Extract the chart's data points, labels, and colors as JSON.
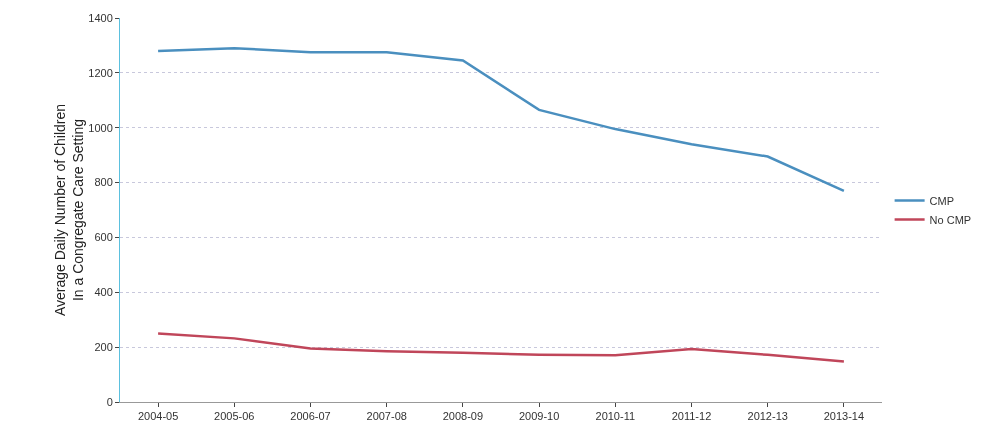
{
  "chart_data": {
    "type": "line",
    "ylabel": "Average Daily Number of Children\nIn a Congregate Care Setting",
    "categories": [
      "2004-05",
      "2005-06",
      "2006-07",
      "2007-08",
      "2008-09",
      "2009-10",
      "2010-11",
      "2011-12",
      "2012-13",
      "2013-14"
    ],
    "series": [
      {
        "name": "CMP",
        "color": "#4a8fbf",
        "values": [
          1280,
          1290,
          1275,
          1275,
          1245,
          1065,
          995,
          940,
          895,
          770
        ]
      },
      {
        "name": "No CMP",
        "color": "#c0465a",
        "values": [
          250,
          232,
          195,
          185,
          180,
          172,
          170,
          193,
          172,
          148
        ]
      }
    ],
    "ylim": [
      0,
      1400
    ],
    "yticks": [
      0,
      200,
      400,
      600,
      800,
      1000,
      1200,
      1400
    ],
    "grid": "y",
    "legend": "right",
    "marker": "none",
    "line_style": "solid"
  }
}
